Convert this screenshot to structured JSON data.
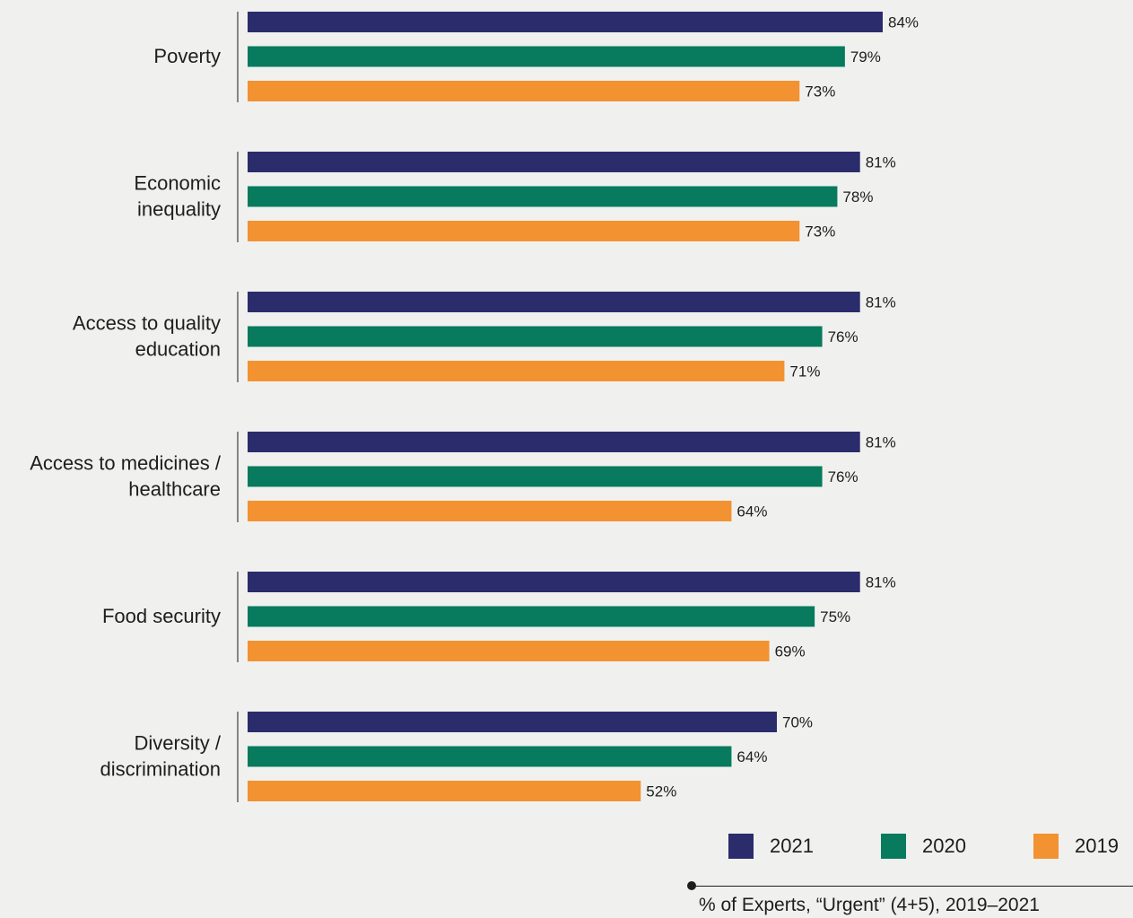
{
  "chart_data": {
    "type": "bar",
    "orientation": "horizontal",
    "categories": [
      [
        "Poverty"
      ],
      [
        "Economic",
        "inequality"
      ],
      [
        "Access to quality",
        "education"
      ],
      [
        "Access to medicines /",
        "healthcare"
      ],
      [
        "Food security"
      ],
      [
        "Diversity /",
        "discrimination"
      ]
    ],
    "series": [
      {
        "name": "2021",
        "color": "#2b2c6b",
        "values": [
          84,
          81,
          81,
          81,
          81,
          70
        ]
      },
      {
        "name": "2020",
        "color": "#087a5e",
        "values": [
          79,
          78,
          76,
          76,
          75,
          64
        ]
      },
      {
        "name": "2019",
        "color": "#f39231",
        "values": [
          73,
          73,
          71,
          64,
          69,
          52
        ]
      }
    ],
    "value_suffix": "%",
    "xlim": [
      0,
      100
    ],
    "grid": false,
    "legend_position": "bottom-right"
  },
  "legend": [
    {
      "label": "2021",
      "color": "#2b2c6b"
    },
    {
      "label": "2020",
      "color": "#087a5e"
    },
    {
      "label": "2019",
      "color": "#f39231"
    }
  ],
  "footnote": "% of Experts, “Urgent” (4+5), 2019–2021"
}
